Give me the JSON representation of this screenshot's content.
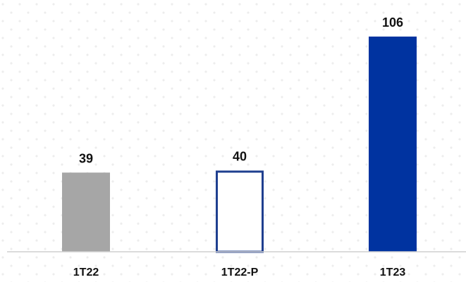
{
  "chart_data": {
    "type": "bar",
    "categories": [
      "1T22",
      "1T22-P",
      "1T23"
    ],
    "values": [
      39,
      40,
      106
    ],
    "bar_styles": [
      {
        "fill": "#a6a6a6",
        "stroke": "none",
        "hollow": false
      },
      {
        "fill": "#ffffff",
        "stroke": "#1f3f8f",
        "hollow": true
      },
      {
        "fill": "#0033a0",
        "stroke": "none",
        "hollow": false
      }
    ],
    "title": "",
    "xlabel": "",
    "ylabel": "",
    "ylim": [
      0,
      106
    ],
    "grid": false,
    "legend": "none",
    "colors": {
      "baseline": "#cfcfcf",
      "dots": "#e6e6e6"
    }
  }
}
